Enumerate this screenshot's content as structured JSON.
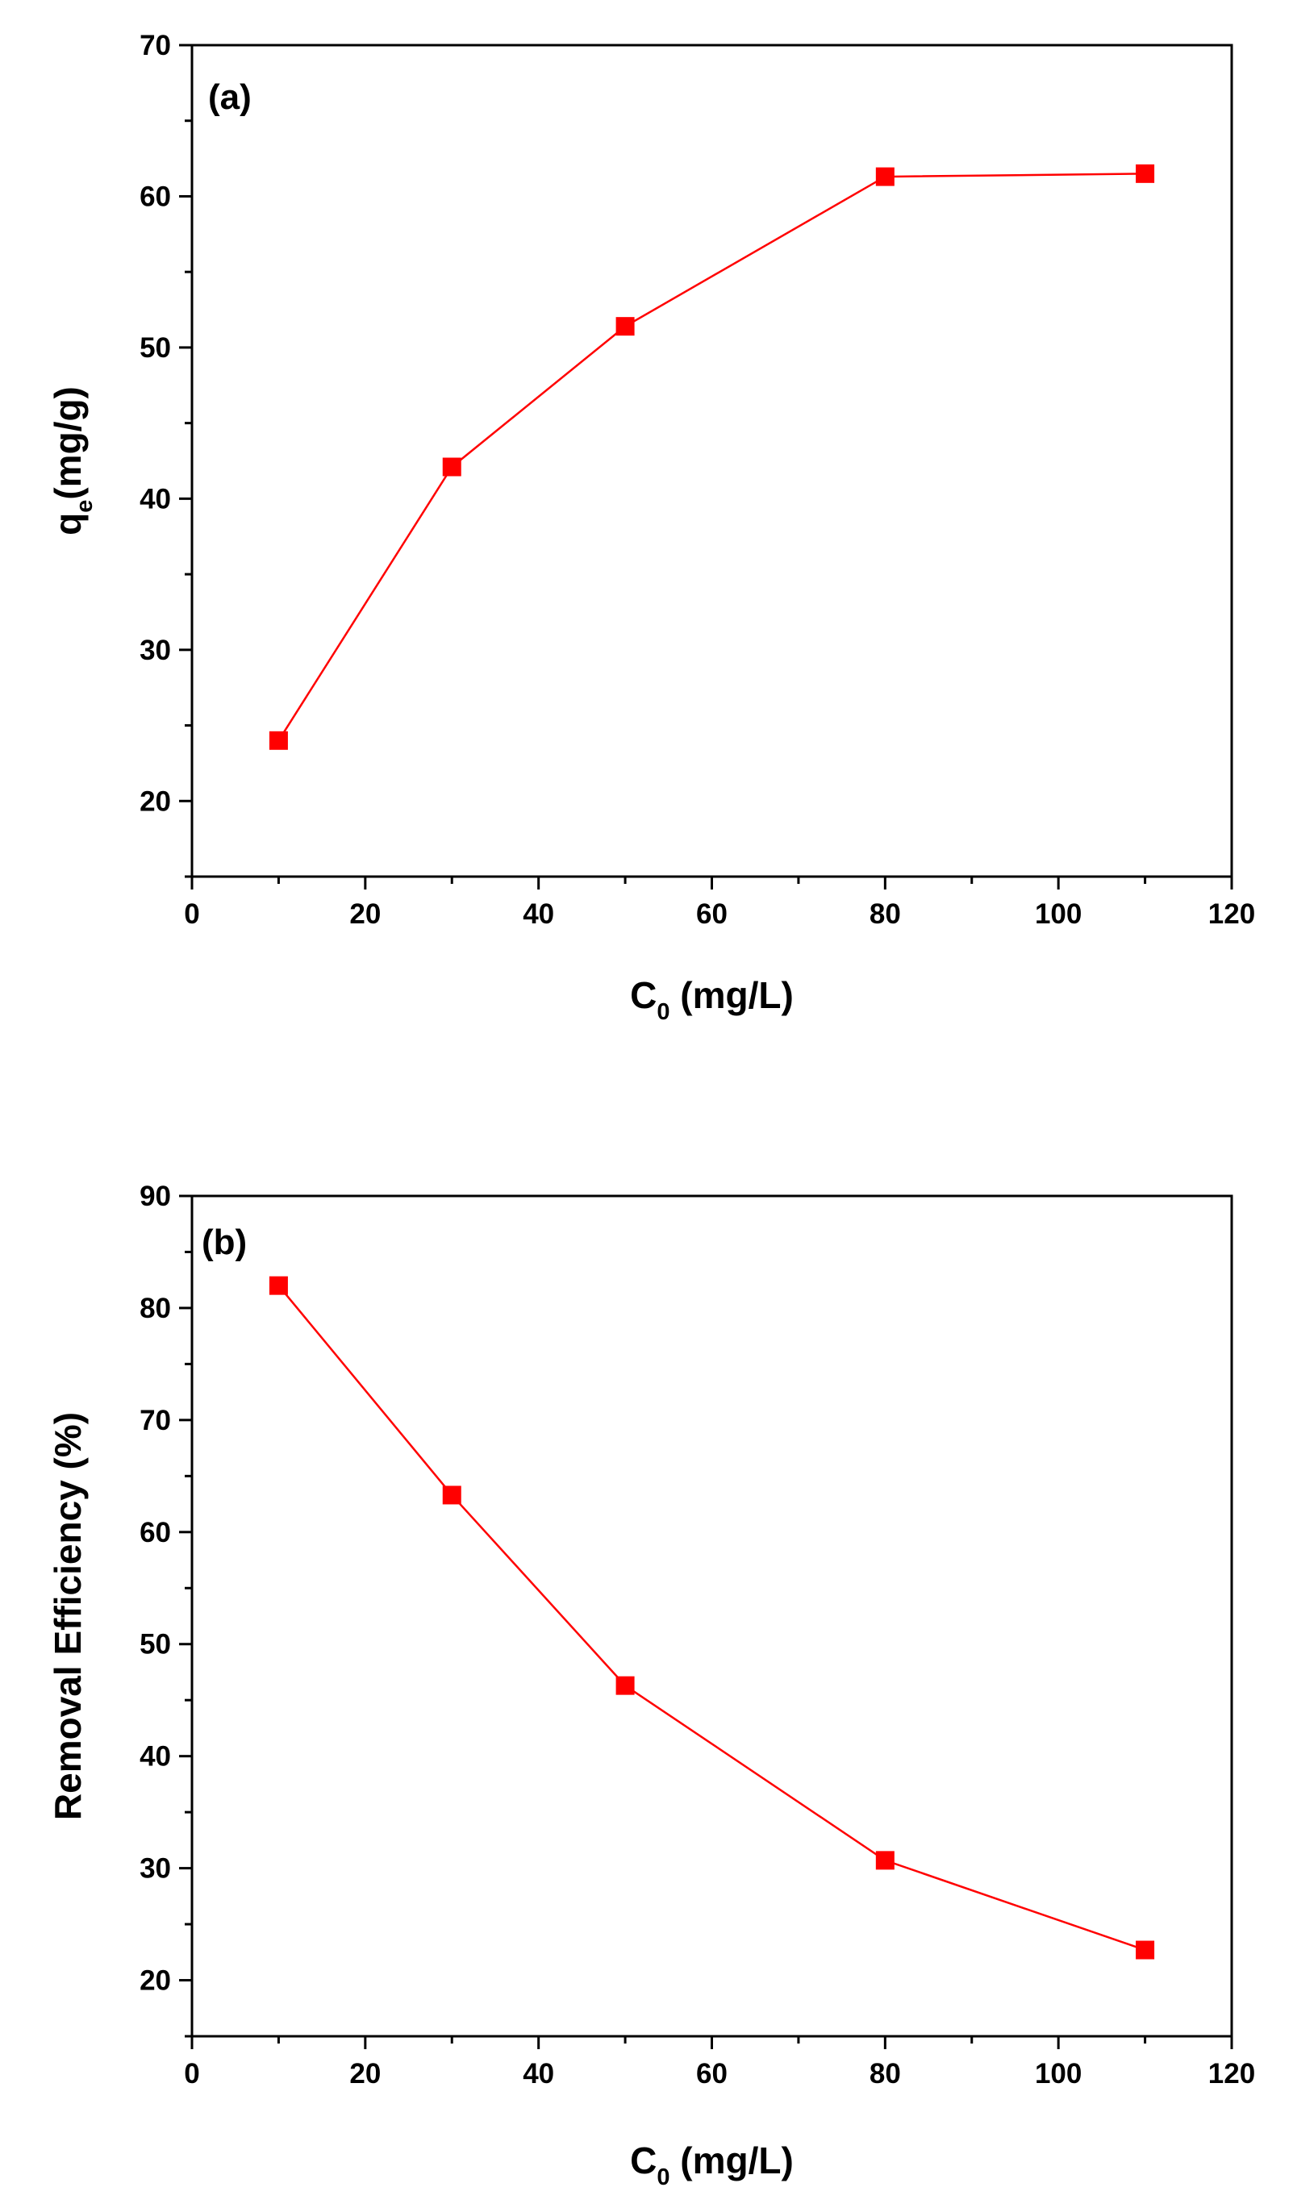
{
  "chart_data": [
    {
      "type": "line",
      "panel_label": "(a)",
      "xlabel_main": "C",
      "xlabel_sub": "0",
      "xlabel_rest": " (mg/L)",
      "ylabel_main": "q",
      "ylabel_sub": "e",
      "ylabel_rest": "(mg/g)",
      "xlim": [
        0,
        120
      ],
      "ylim": [
        15,
        70
      ],
      "xticks": [
        0,
        20,
        40,
        60,
        80,
        100,
        120
      ],
      "yticks": [
        20,
        30,
        40,
        50,
        60,
        70
      ],
      "x_minor_step": 10,
      "y_minor_step": 5,
      "grid": false,
      "color": "#ff0000",
      "series": [
        {
          "x": [
            10,
            30,
            50,
            80,
            110
          ],
          "y": [
            24.0,
            42.1,
            51.4,
            61.3,
            61.5
          ]
        }
      ]
    },
    {
      "type": "line",
      "panel_label": "(b)",
      "xlabel_main": "C",
      "xlabel_sub": "0",
      "xlabel_rest": " (mg/L)",
      "ylabel_main": "Removal Efficiency (%)",
      "ylabel_sub": "",
      "ylabel_rest": "",
      "xlim": [
        0,
        120
      ],
      "ylim": [
        15,
        90
      ],
      "xticks": [
        0,
        20,
        40,
        60,
        80,
        100,
        120
      ],
      "yticks": [
        20,
        30,
        40,
        50,
        60,
        70,
        80,
        90
      ],
      "x_minor_step": 10,
      "y_minor_step": 5,
      "grid": false,
      "color": "#ff0000",
      "series": [
        {
          "x": [
            10,
            30,
            50,
            80,
            110
          ],
          "y": [
            82.0,
            63.3,
            46.3,
            30.7,
            22.7
          ]
        }
      ]
    }
  ]
}
